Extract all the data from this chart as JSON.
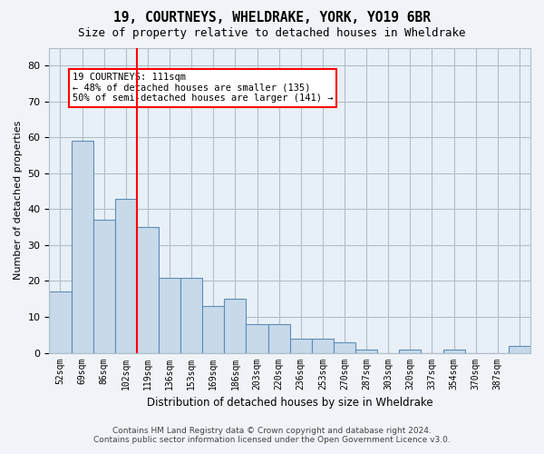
{
  "title_line1": "19, COURTNEYS, WHELDRAKE, YORK, YO19 6BR",
  "title_line2": "Size of property relative to detached houses in Wheldrake",
  "xlabel": "Distribution of detached houses by size in Wheldrake",
  "ylabel": "Number of detached properties",
  "bar_values": [
    17,
    59,
    37,
    43,
    35,
    21,
    21,
    13,
    15,
    8,
    8,
    4,
    4,
    3,
    1,
    0,
    1,
    0,
    1,
    0,
    0,
    2
  ],
  "x_tick_labels": [
    "52sqm",
    "69sqm",
    "86sqm",
    "102sqm",
    "119sqm",
    "136sqm",
    "153sqm",
    "169sqm",
    "186sqm",
    "203sqm",
    "220sqm",
    "236sqm",
    "253sqm",
    "270sqm",
    "287sqm",
    "303sqm",
    "320sqm",
    "337sqm",
    "354sqm",
    "370sqm",
    "387sqm",
    ""
  ],
  "bar_color": "#c8d9ea",
  "bar_edge_color": "#5b8db8",
  "grid_color": "#b0bec5",
  "red_line_x": 3.5,
  "annotation_text": "19 COURTNEYS: 111sqm\n← 48% of detached houses are smaller (135)\n50% of semi-detached houses are larger (141) →",
  "annotation_box_color": "white",
  "annotation_box_edge": "red",
  "ylim": [
    0,
    85
  ],
  "yticks": [
    0,
    10,
    20,
    30,
    40,
    50,
    60,
    70,
    80
  ],
  "footer_line1": "Contains HM Land Registry data © Crown copyright and database right 2024.",
  "footer_line2": "Contains public sector information licensed under the Open Government Licence v3.0.",
  "bg_color": "#f0f4f8",
  "plot_bg_color": "#e8f0f7"
}
